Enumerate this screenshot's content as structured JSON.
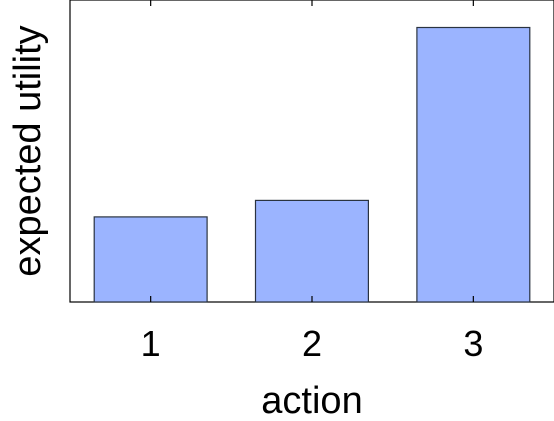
{
  "chart_data": {
    "type": "bar",
    "categories": [
      "1",
      "2",
      "3"
    ],
    "values": [
      0.31,
      0.37,
      1.0
    ],
    "title": "",
    "xlabel": "action",
    "ylabel": "expected utility",
    "ylim": [
      0,
      1.1
    ],
    "grid": false,
    "y_tick_labels_shown": false,
    "colors": {
      "bar_fill": "#9bb4ff",
      "bar_stroke": "#2a3340",
      "axis": "#000000"
    }
  }
}
